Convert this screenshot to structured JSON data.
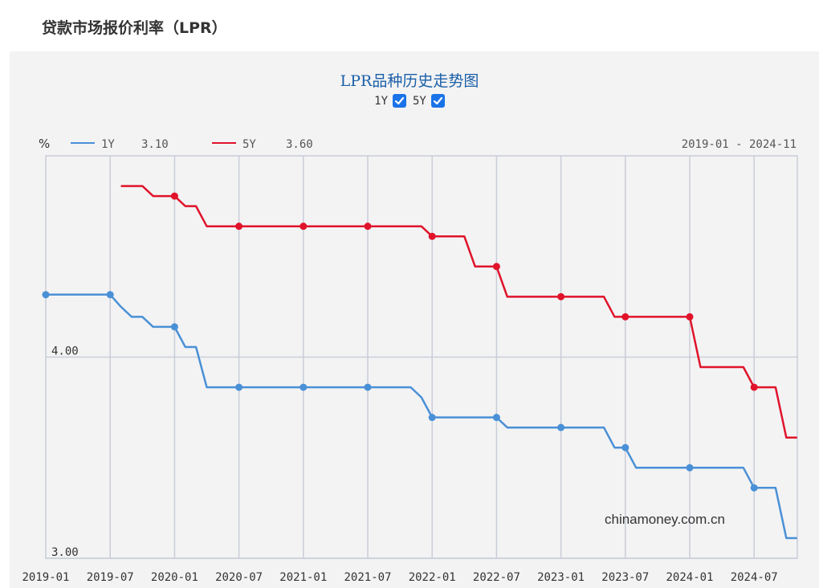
{
  "page": {
    "title": "贷款市场报价利率（LPR）"
  },
  "toggles": [
    {
      "label": "1Y",
      "checked": true
    },
    {
      "label": "5Y",
      "checked": true
    }
  ],
  "legend": {
    "unit": "%",
    "items": [
      {
        "name": "1Y",
        "value": "3.10",
        "color": "#4a90d6"
      },
      {
        "name": "5Y",
        "value": "3.60",
        "color": "#e0132a"
      }
    ],
    "date_range": "2019-01 - 2024-11"
  },
  "watermark": "chinamoney.com.cn",
  "chart_data": {
    "type": "line",
    "title": "LPR品种历史走势图",
    "ylabel": "%",
    "ylim": [
      3.0,
      5.0
    ],
    "y_ticks": [
      {
        "value": 3.0,
        "label": "3.00"
      },
      {
        "value": 4.0,
        "label": "4.00"
      }
    ],
    "x_ticks": [
      "2019-01",
      "2019-07",
      "2020-01",
      "2020-07",
      "2021-01",
      "2021-07",
      "2022-01",
      "2022-07",
      "2023-01",
      "2023-07",
      "2024-01",
      "2024-07"
    ],
    "grid": true,
    "marker_months": [
      "2019-01",
      "2019-07",
      "2020-01",
      "2020-07",
      "2021-01",
      "2021-07",
      "2022-01",
      "2022-07",
      "2023-01",
      "2023-07",
      "2024-01",
      "2024-07"
    ],
    "series": [
      {
        "name": "1Y",
        "color": "#4a90d6",
        "x": [
          "2019-01",
          "2019-07",
          "2019-08",
          "2019-09",
          "2019-10",
          "2019-11",
          "2019-12",
          "2020-01",
          "2020-02",
          "2020-03",
          "2020-04",
          "2020-05",
          "2020-06",
          "2020-07",
          "2020-08",
          "2020-09",
          "2020-10",
          "2020-11",
          "2020-12",
          "2021-01",
          "2021-02",
          "2021-03",
          "2021-04",
          "2021-05",
          "2021-06",
          "2021-07",
          "2021-08",
          "2021-09",
          "2021-10",
          "2021-11",
          "2021-12",
          "2022-01",
          "2022-02",
          "2022-03",
          "2022-04",
          "2022-05",
          "2022-06",
          "2022-07",
          "2022-08",
          "2022-09",
          "2022-10",
          "2022-11",
          "2022-12",
          "2023-01",
          "2023-02",
          "2023-03",
          "2023-04",
          "2023-05",
          "2023-06",
          "2023-07",
          "2023-08",
          "2023-09",
          "2023-10",
          "2023-11",
          "2023-12",
          "2024-01",
          "2024-02",
          "2024-03",
          "2024-04",
          "2024-05",
          "2024-06",
          "2024-07",
          "2024-08",
          "2024-09",
          "2024-10",
          "2024-11"
        ],
        "values": [
          4.31,
          4.31,
          4.25,
          4.2,
          4.2,
          4.15,
          4.15,
          4.15,
          4.05,
          4.05,
          3.85,
          3.85,
          3.85,
          3.85,
          3.85,
          3.85,
          3.85,
          3.85,
          3.85,
          3.85,
          3.85,
          3.85,
          3.85,
          3.85,
          3.85,
          3.85,
          3.85,
          3.85,
          3.85,
          3.85,
          3.8,
          3.7,
          3.7,
          3.7,
          3.7,
          3.7,
          3.7,
          3.7,
          3.65,
          3.65,
          3.65,
          3.65,
          3.65,
          3.65,
          3.65,
          3.65,
          3.65,
          3.65,
          3.55,
          3.55,
          3.45,
          3.45,
          3.45,
          3.45,
          3.45,
          3.45,
          3.45,
          3.45,
          3.45,
          3.45,
          3.45,
          3.35,
          3.35,
          3.35,
          3.1,
          3.1
        ],
        "current": 3.1
      },
      {
        "name": "5Y",
        "color": "#e0132a",
        "x": [
          "2019-08",
          "2019-09",
          "2019-10",
          "2019-11",
          "2019-12",
          "2020-01",
          "2020-02",
          "2020-03",
          "2020-04",
          "2020-05",
          "2020-06",
          "2020-07",
          "2020-08",
          "2020-09",
          "2020-10",
          "2020-11",
          "2020-12",
          "2021-01",
          "2021-02",
          "2021-03",
          "2021-04",
          "2021-05",
          "2021-06",
          "2021-07",
          "2021-08",
          "2021-09",
          "2021-10",
          "2021-11",
          "2021-12",
          "2022-01",
          "2022-02",
          "2022-03",
          "2022-04",
          "2022-05",
          "2022-06",
          "2022-07",
          "2022-08",
          "2022-09",
          "2022-10",
          "2022-11",
          "2022-12",
          "2023-01",
          "2023-02",
          "2023-03",
          "2023-04",
          "2023-05",
          "2023-06",
          "2023-07",
          "2023-08",
          "2023-09",
          "2023-10",
          "2023-11",
          "2023-12",
          "2024-01",
          "2024-02",
          "2024-03",
          "2024-04",
          "2024-05",
          "2024-06",
          "2024-07",
          "2024-08",
          "2024-09",
          "2024-10",
          "2024-11"
        ],
        "values": [
          4.85,
          4.85,
          4.85,
          4.8,
          4.8,
          4.8,
          4.75,
          4.75,
          4.65,
          4.65,
          4.65,
          4.65,
          4.65,
          4.65,
          4.65,
          4.65,
          4.65,
          4.65,
          4.65,
          4.65,
          4.65,
          4.65,
          4.65,
          4.65,
          4.65,
          4.65,
          4.65,
          4.65,
          4.65,
          4.6,
          4.6,
          4.6,
          4.6,
          4.45,
          4.45,
          4.45,
          4.3,
          4.3,
          4.3,
          4.3,
          4.3,
          4.3,
          4.3,
          4.3,
          4.3,
          4.3,
          4.2,
          4.2,
          4.2,
          4.2,
          4.2,
          4.2,
          4.2,
          4.2,
          3.95,
          3.95,
          3.95,
          3.95,
          3.95,
          3.85,
          3.85,
          3.85,
          3.6,
          3.6
        ],
        "current": 3.6
      }
    ]
  }
}
